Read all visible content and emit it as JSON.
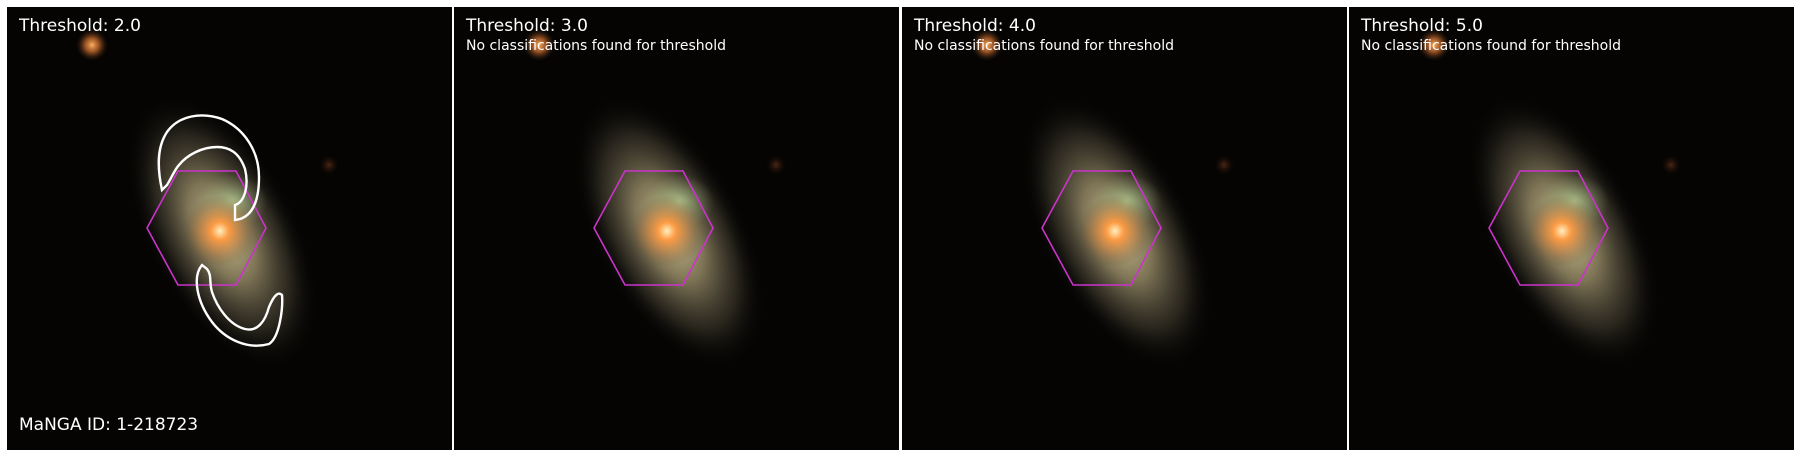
{
  "panels": [
    {
      "title": "Threshold: 2.0",
      "note": ""
    },
    {
      "title": "Threshold: 3.0",
      "note": "No classifications found for threshold"
    },
    {
      "title": "Threshold: 4.0",
      "note": "No classifications found for threshold"
    },
    {
      "title": "Threshold: 5.0",
      "note": "No classifications found for threshold"
    }
  ],
  "manga_id_label": "MaNGA ID: 1-218723",
  "colors": {
    "background": "#050403",
    "hexagon": "#cc33cc",
    "contour": "#ffffff",
    "core": "#ff8a33",
    "halo": "#c8b88a"
  }
}
